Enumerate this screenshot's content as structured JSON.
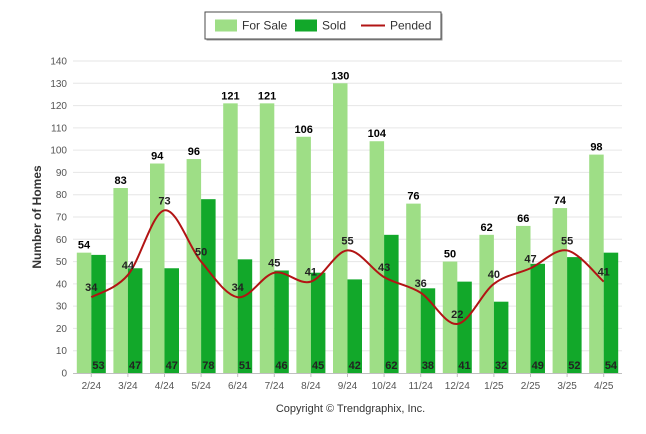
{
  "chart_data": {
    "type": "bar",
    "ylabel": "Number of Homes",
    "xlabel": "",
    "ylim": [
      0,
      140
    ],
    "yticks": [
      0,
      10,
      20,
      30,
      40,
      50,
      60,
      70,
      80,
      90,
      100,
      110,
      120,
      130,
      140
    ],
    "grid": true,
    "legend_position": "top-center",
    "categories": [
      "2/24",
      "3/24",
      "4/24",
      "5/24",
      "6/24",
      "7/24",
      "8/24",
      "9/24",
      "10/24",
      "11/24",
      "12/24",
      "1/25",
      "2/25",
      "3/25",
      "4/25"
    ],
    "series": [
      {
        "name": "For Sale",
        "kind": "bar",
        "color": "#9ede86",
        "values": [
          54,
          83,
          94,
          96,
          121,
          121,
          106,
          130,
          104,
          76,
          50,
          62,
          66,
          74,
          98
        ]
      },
      {
        "name": "Sold",
        "kind": "bar",
        "color": "#12a82a",
        "values": [
          53,
          47,
          47,
          78,
          51,
          46,
          45,
          42,
          62,
          38,
          41,
          32,
          49,
          52,
          54
        ]
      },
      {
        "name": "Pended",
        "kind": "line",
        "color": "#b21414",
        "values": [
          34,
          44,
          73,
          50,
          34,
          45,
          41,
          55,
          43,
          36,
          22,
          40,
          47,
          55,
          41
        ]
      }
    ]
  },
  "credit": "Copyright © Trendgraphix, Inc."
}
